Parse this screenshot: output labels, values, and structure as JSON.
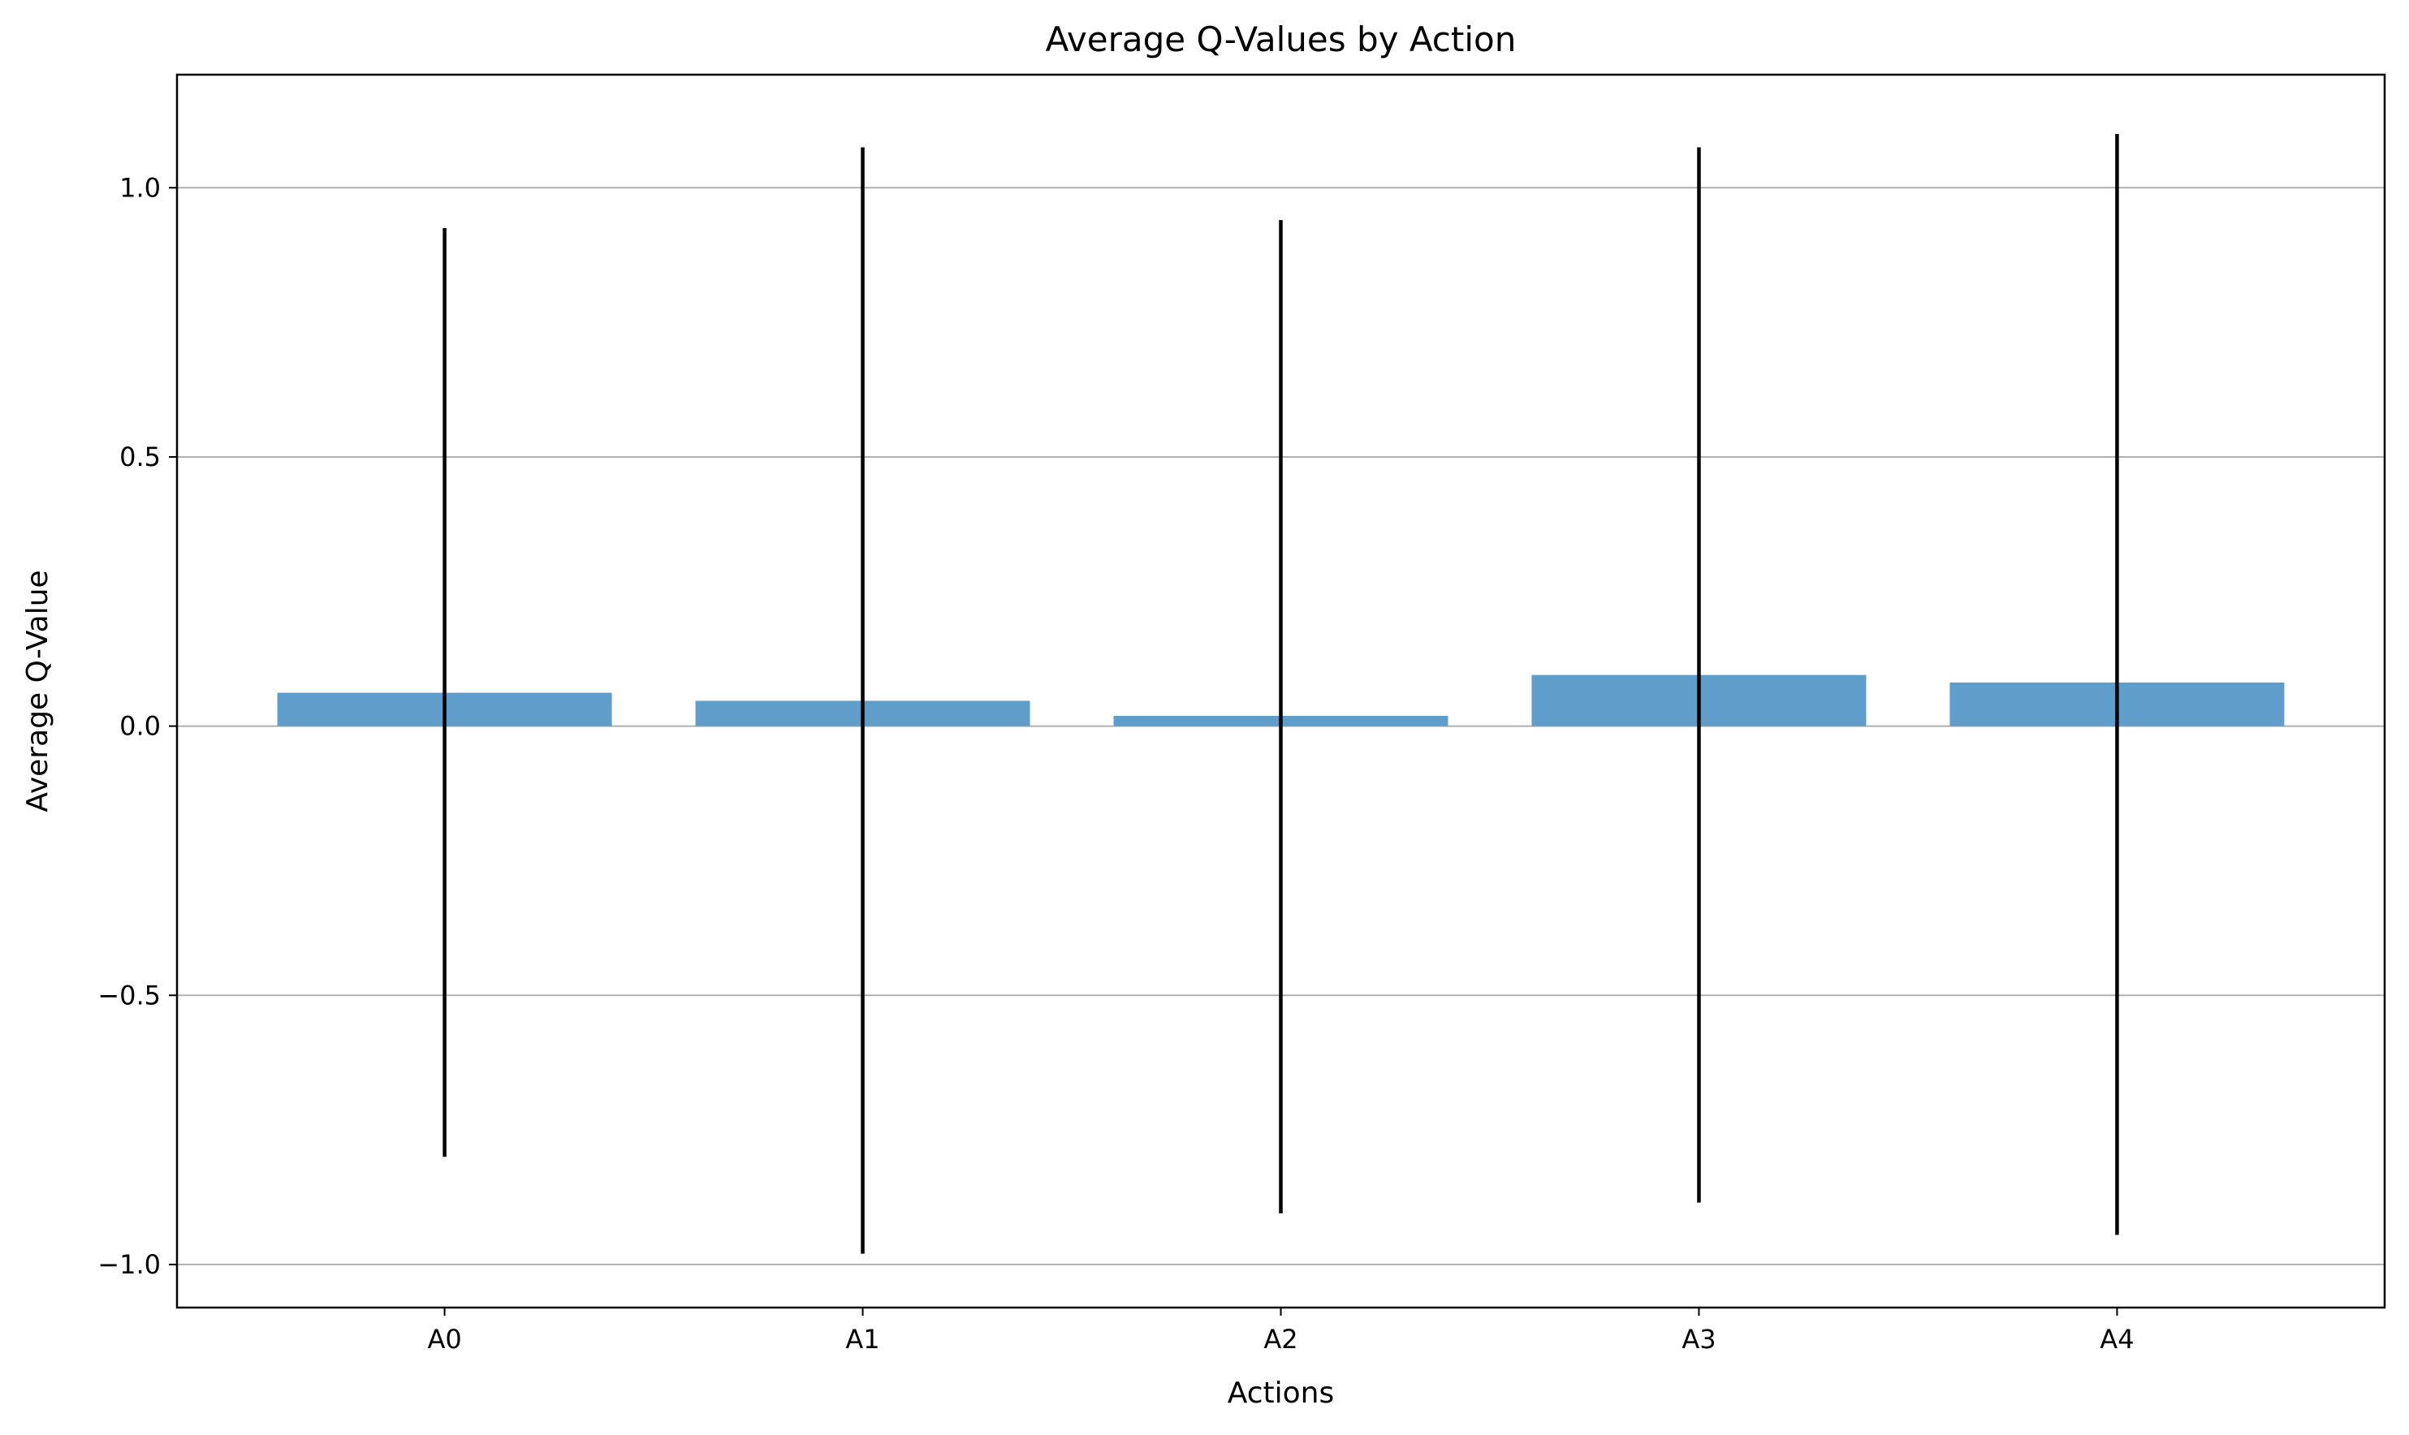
{
  "chart_data": {
    "type": "bar",
    "title": "Average Q-Values by Action",
    "xlabel": "Actions",
    "ylabel": "Average Q-Value",
    "categories": [
      "A0",
      "A1",
      "A2",
      "A3",
      "A4"
    ],
    "values": [
      0.062,
      0.047,
      0.019,
      0.095,
      0.081
    ],
    "error_lower": [
      -0.8,
      -0.98,
      -0.905,
      -0.885,
      -0.945
    ],
    "error_upper": [
      0.925,
      1.075,
      0.94,
      1.075,
      1.1
    ],
    "ylim": [
      -1.08,
      1.21
    ],
    "yticks": [
      -1.0,
      -0.5,
      0.0,
      0.5,
      1.0
    ],
    "ytick_labels": [
      "−1.0",
      "−0.5",
      "0.0",
      "0.5",
      "1.0"
    ],
    "grid": "y",
    "bar_color": "#5f9dca",
    "error_color": "#000000",
    "grid_color": "#b0b0b0"
  }
}
